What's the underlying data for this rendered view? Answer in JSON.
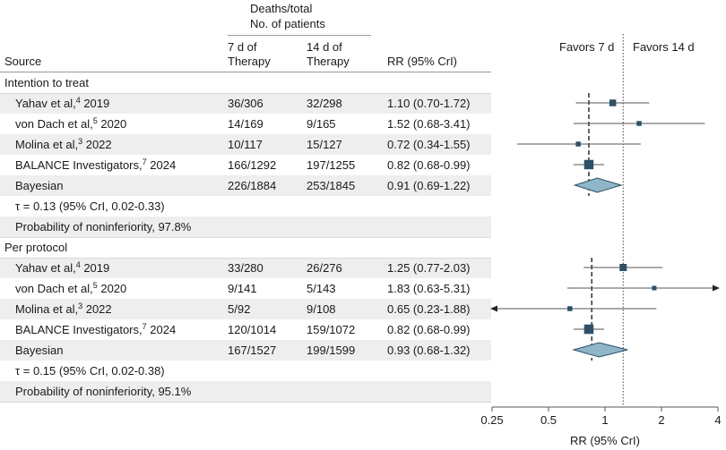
{
  "header": {
    "group_label_line1": "Deaths/total",
    "group_label_line2": "No. of patients",
    "source": "Source",
    "col7_line1": "7 d of",
    "col7_line2": "Therapy",
    "col14_line1": "14 d of",
    "col14_line2": "Therapy",
    "rr": "RR (95% CrI)",
    "favors_left": "Favors 7 d",
    "favors_right": "Favors 14 d"
  },
  "sections": [
    {
      "title": "Intention to treat",
      "rows": [
        {
          "author": "Yahav et al,",
          "ref": "4",
          "year": " 2019",
          "d7": "36/306",
          "d14": "32/298",
          "rr_text": "1.10 (0.70-1.72)"
        },
        {
          "author": "von Dach et al,",
          "ref": "5",
          "year": " 2020",
          "d7": "14/169",
          "d14": "9/165",
          "rr_text": "1.52 (0.68-3.41)"
        },
        {
          "author": "Molina et al,",
          "ref": "3",
          "year": " 2022",
          "d7": "10/117",
          "d14": "15/127",
          "rr_text": "0.72 (0.34-1.55)"
        },
        {
          "author": "BALANCE Investigators,",
          "ref": "7",
          "year": " 2024",
          "d7": "166/1292",
          "d14": "197/1255",
          "rr_text": "0.82 (0.68-0.99)"
        }
      ],
      "pooled": {
        "label": "Bayesian",
        "d7": "226/1884",
        "d14": "253/1845",
        "rr_text": "0.91 (0.69-1.22)"
      },
      "tau": "τ = 0.13 (95% CrI, 0.02-0.33)",
      "prob": "Probability of noninferiority, 97.8%"
    },
    {
      "title": "Per protocol",
      "rows": [
        {
          "author": "Yahav et al,",
          "ref": "4",
          "year": " 2019",
          "d7": "33/280",
          "d14": "26/276",
          "rr_text": "1.25 (0.77-2.03)"
        },
        {
          "author": "von Dach et al,",
          "ref": "5",
          "year": " 2020",
          "d7": "9/141",
          "d14": "5/143",
          "rr_text": "1.83 (0.63-5.31)"
        },
        {
          "author": "Molina et al,",
          "ref": "3",
          "year": " 2022",
          "d7": "5/92",
          "d14": "9/108",
          "rr_text": "0.65 (0.23-1.88)"
        },
        {
          "author": "BALANCE Investigators,",
          "ref": "7",
          "year": " 2024",
          "d7": "120/1014",
          "d14": "159/1072",
          "rr_text": "0.82 (0.68-0.99)"
        }
      ],
      "pooled": {
        "label": "Bayesian",
        "d7": "167/1527",
        "d14": "199/1599",
        "rr_text": "0.93 (0.68-1.32)"
      },
      "tau": "τ = 0.15 (95% CrI, 0.02-0.38)",
      "prob": "Probability of noninferiority, 95.1%"
    }
  ],
  "chart_data": {
    "type": "forest",
    "scale": "log",
    "xlabel": "RR (95% CrI)",
    "xticks": [
      0.25,
      0.5,
      1,
      2,
      4
    ],
    "xtick_labels": [
      "0.25",
      "0.5",
      "1",
      "2",
      "4"
    ],
    "xlim": [
      0.25,
      4
    ],
    "null_line": 1,
    "noninferiority_reference": 1.25,
    "colors": {
      "marker": "#2e5066",
      "line": "#555555",
      "diamond": "#8fb5c8",
      "diamond_edge": "#2e5066"
    },
    "series": [
      {
        "name": "Intention to treat",
        "studies": [
          {
            "label": "Yahav et al, 2019",
            "rr": 1.1,
            "lo": 0.7,
            "hi": 1.72,
            "weight": 0.35
          },
          {
            "label": "von Dach et al, 2020",
            "rr": 1.52,
            "lo": 0.68,
            "hi": 3.41,
            "weight": 0.15
          },
          {
            "label": "Molina et al, 2022",
            "rr": 0.72,
            "lo": 0.34,
            "hi": 1.55,
            "weight": 0.15
          },
          {
            "label": "BALANCE Investigators, 2024",
            "rr": 0.82,
            "lo": 0.68,
            "hi": 0.99,
            "weight": 0.65
          }
        ],
        "pooled": {
          "rr": 0.91,
          "lo": 0.69,
          "hi": 1.22
        },
        "mean_line": 0.82
      },
      {
        "name": "Per protocol",
        "studies": [
          {
            "label": "Yahav et al, 2019",
            "rr": 1.25,
            "lo": 0.77,
            "hi": 2.03,
            "weight": 0.4
          },
          {
            "label": "von Dach et al, 2020",
            "rr": 1.83,
            "lo": 0.63,
            "hi": 5.31,
            "weight": 0.1
          },
          {
            "label": "Molina et al, 2022",
            "rr": 0.65,
            "lo": 0.23,
            "hi": 1.88,
            "weight": 0.15
          },
          {
            "label": "BALANCE Investigators, 2024",
            "rr": 0.82,
            "lo": 0.68,
            "hi": 0.99,
            "weight": 0.65
          }
        ],
        "pooled": {
          "rr": 0.93,
          "lo": 0.68,
          "hi": 1.32
        },
        "mean_line": 0.85
      }
    ]
  }
}
